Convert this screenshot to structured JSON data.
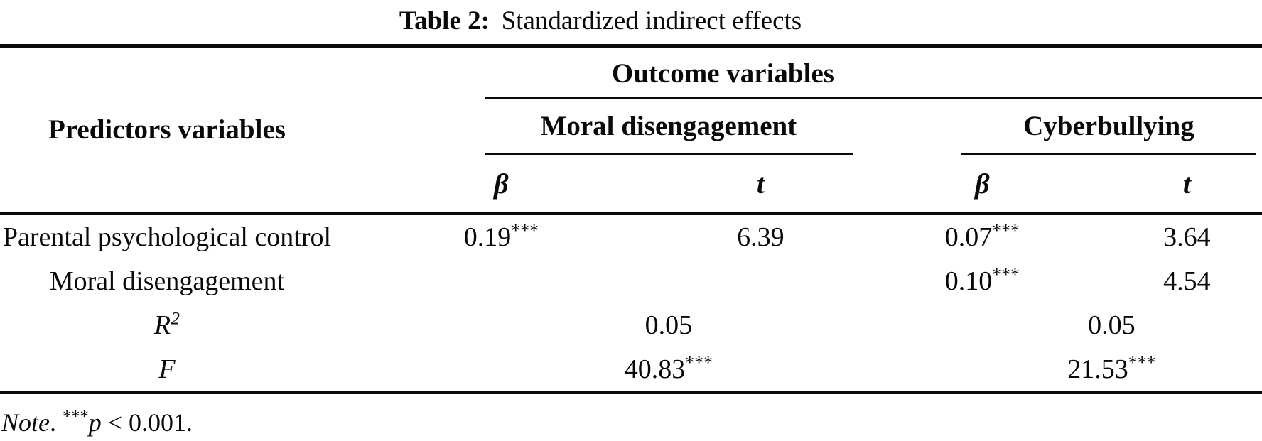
{
  "title": {
    "bold": "Table 2:",
    "rest": "Standardized indirect effects"
  },
  "header": {
    "predictors_label": "Predictors variables",
    "outcome_label": "Outcome variables",
    "group_md_label": "Moral disengagement",
    "group_cb_label": "Cyberbullying",
    "beta_symbol": "β",
    "t_symbol": "t"
  },
  "rows": {
    "r1": {
      "label": "Parental psychological control",
      "md_beta": "0.19",
      "md_beta_stars": "***",
      "md_t": "6.39",
      "cb_beta": "0.07",
      "cb_beta_stars": "***",
      "cb_t": "3.64"
    },
    "r2": {
      "label": "Moral disengagement",
      "cb_beta": "0.10",
      "cb_beta_stars": "***",
      "cb_t": "4.54"
    },
    "r3": {
      "label_base": "R",
      "label_sup": "2",
      "md_value": "0.05",
      "cb_value": "0.05"
    },
    "r4": {
      "label": "F",
      "md_value": "40.83",
      "md_stars": "***",
      "cb_value": "21.53",
      "cb_stars": "***"
    }
  },
  "note": {
    "word": "Note",
    "sep": ". ",
    "stars": "***",
    "p_symbol": "p",
    "tail": " < 0.001."
  },
  "colors": {
    "text": "#0a0a0a",
    "background": "#ffffff",
    "rule": "#0a0a0a"
  }
}
